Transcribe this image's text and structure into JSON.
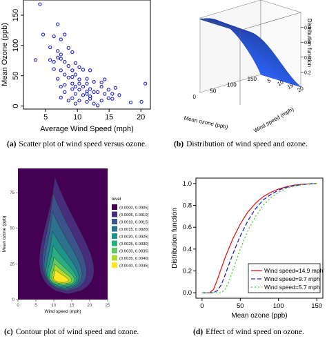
{
  "captions": {
    "a": {
      "tag": "(a)",
      "text": "Scatter plot of wind speed versus ozone."
    },
    "b": {
      "tag": "(b)",
      "text": "Distribution of wind speed and ozone."
    },
    "c": {
      "tag": "(c)",
      "text": "Contour plot of wind speed and ozone."
    },
    "d": {
      "tag": "(d)",
      "text": "Effect of wind speed on ozone."
    }
  },
  "chart_data": [
    {
      "id": "a",
      "type": "scatter",
      "xlabel": "Average Wind Speed (mph)",
      "ylabel": "Mean Ozone (ppb)",
      "xticks": [
        5,
        10,
        15,
        20
      ],
      "yticks": [
        0,
        50,
        100,
        150
      ],
      "xlim": [
        1.5,
        21.5
      ],
      "ylim": [
        -5,
        175
      ],
      "color": "#1f1fcc",
      "points": [
        [
          4.1,
          168
        ],
        [
          6.9,
          135
        ],
        [
          4.6,
          118
        ],
        [
          6.3,
          115
        ],
        [
          5.7,
          97
        ],
        [
          7.4,
          110
        ],
        [
          6.9,
          91
        ],
        [
          8.0,
          118
        ],
        [
          8.6,
          96
        ],
        [
          7.4,
          85
        ],
        [
          9.2,
          89
        ],
        [
          6.9,
          80
        ],
        [
          3.4,
          76
        ],
        [
          5.7,
          76
        ],
        [
          6.3,
          73
        ],
        [
          7.4,
          78
        ],
        [
          8.0,
          73
        ],
        [
          9.7,
          71
        ],
        [
          8.6,
          66
        ],
        [
          10.3,
          64
        ],
        [
          9.2,
          59
        ],
        [
          12.0,
          59
        ],
        [
          6.3,
          61
        ],
        [
          7.4,
          59
        ],
        [
          8.0,
          52
        ],
        [
          9.7,
          52
        ],
        [
          11.5,
          45
        ],
        [
          10.3,
          44
        ],
        [
          6.9,
          45
        ],
        [
          8.6,
          47
        ],
        [
          14.3,
          44
        ],
        [
          12.6,
          40
        ],
        [
          9.2,
          37
        ],
        [
          10.3,
          37
        ],
        [
          11.5,
          37
        ],
        [
          7.4,
          32
        ],
        [
          8.0,
          35
        ],
        [
          9.7,
          32
        ],
        [
          10.9,
          32
        ],
        [
          13.8,
          32
        ],
        [
          14.9,
          27
        ],
        [
          12.0,
          28
        ],
        [
          9.2,
          28
        ],
        [
          10.3,
          27
        ],
        [
          11.5,
          24
        ],
        [
          12.6,
          23
        ],
        [
          8.0,
          23
        ],
        [
          13.2,
          23
        ],
        [
          14.3,
          20
        ],
        [
          15.5,
          20
        ],
        [
          9.7,
          20
        ],
        [
          11.5,
          20
        ],
        [
          10.9,
          18
        ],
        [
          16.6,
          18
        ],
        [
          12.0,
          16
        ],
        [
          14.9,
          13
        ],
        [
          7.4,
          14
        ],
        [
          9.2,
          13
        ],
        [
          8.6,
          9
        ],
        [
          10.3,
          9
        ],
        [
          13.8,
          9
        ],
        [
          11.5,
          7
        ],
        [
          18.4,
          6
        ],
        [
          20.1,
          7
        ],
        [
          9.7,
          4
        ],
        [
          12.6,
          4
        ],
        [
          13.2,
          1
        ],
        [
          20.7,
          37
        ],
        [
          10.9,
          60
        ],
        [
          12.0,
          12
        ],
        [
          15.5,
          12
        ],
        [
          9.2,
          48
        ],
        [
          13.8,
          39
        ],
        [
          16.0,
          30
        ]
      ]
    },
    {
      "id": "b",
      "type": "surface",
      "zlabel": "Distribution function",
      "xlabel": "Mean ozone (ppb)",
      "ylabel": "Wind speed (mph)",
      "zticks": [
        "0.2",
        "0.4",
        "0.6",
        "0.8"
      ],
      "xticks": [
        "0",
        "50",
        "100",
        "150"
      ],
      "yticks": [
        "5",
        "10",
        "15",
        "20"
      ],
      "color": "#2b4fd9"
    },
    {
      "id": "c",
      "type": "contour",
      "xlabel": "Wind speed (mph)",
      "ylabel": "Mean ozone (ppb)",
      "xticks": [
        0,
        5,
        10,
        15,
        20,
        25
      ],
      "yticks": [
        0,
        25,
        50,
        75
      ],
      "xlim": [
        0,
        25
      ],
      "ylim": [
        0,
        92
      ],
      "legend_title": "level",
      "levels": [
        "(0.0000, 0.0005]",
        "(0.0005, 0.0010]",
        "(0.0010, 0.0015]",
        "(0.0015, 0.0020]",
        "(0.0020, 0.0025]",
        "(0.0025, 0.0030]",
        "(0.0030, 0.0035]",
        "(0.0035, 0.0040]",
        "(0.0040, 0.0045]"
      ],
      "colors": [
        "#440154",
        "#472d7b",
        "#3b528b",
        "#2c728e",
        "#21918c",
        "#28ae80",
        "#5ec962",
        "#addc30",
        "#fde725"
      ]
    },
    {
      "id": "d",
      "type": "line",
      "xlabel": "Mean ozone (ppb)",
      "ylabel": "Distribution function",
      "xticks": [
        0,
        50,
        100,
        150
      ],
      "yticks": [
        "0.0",
        "0.2",
        "0.4",
        "0.6",
        "0.8",
        "1.0"
      ],
      "xlim": [
        -8,
        158
      ],
      "ylim": [
        -0.05,
        1.05
      ],
      "series": [
        {
          "name": "Wind speed=14.9 mph",
          "color": "#e41a1c",
          "dash": "",
          "x": [
            0,
            10,
            15,
            20,
            30,
            40,
            50,
            60,
            70,
            80,
            90,
            100,
            110,
            120,
            130,
            140,
            150
          ],
          "y": [
            0,
            0,
            0.03,
            0.12,
            0.32,
            0.49,
            0.63,
            0.74,
            0.82,
            0.88,
            0.92,
            0.95,
            0.97,
            0.985,
            0.993,
            0.997,
            1.0
          ]
        },
        {
          "name": "Wind speed=9.7 mph",
          "color": "#2020c8",
          "dash": "6,3",
          "x": [
            0,
            15,
            20,
            25,
            30,
            40,
            50,
            60,
            70,
            80,
            90,
            100,
            110,
            120,
            130,
            140,
            150
          ],
          "y": [
            0,
            0,
            0.02,
            0.07,
            0.16,
            0.35,
            0.52,
            0.66,
            0.77,
            0.85,
            0.9,
            0.94,
            0.965,
            0.98,
            0.99,
            0.996,
            1.0
          ]
        },
        {
          "name": "Wind speed=5.7 mph",
          "color": "#33cc33",
          "dash": "2,3",
          "x": [
            0,
            25,
            30,
            35,
            40,
            50,
            60,
            70,
            80,
            90,
            100,
            110,
            120,
            130,
            140,
            150
          ],
          "y": [
            0,
            0,
            0.03,
            0.1,
            0.2,
            0.4,
            0.57,
            0.7,
            0.8,
            0.87,
            0.92,
            0.955,
            0.975,
            0.988,
            0.995,
            1.0
          ]
        }
      ]
    }
  ]
}
